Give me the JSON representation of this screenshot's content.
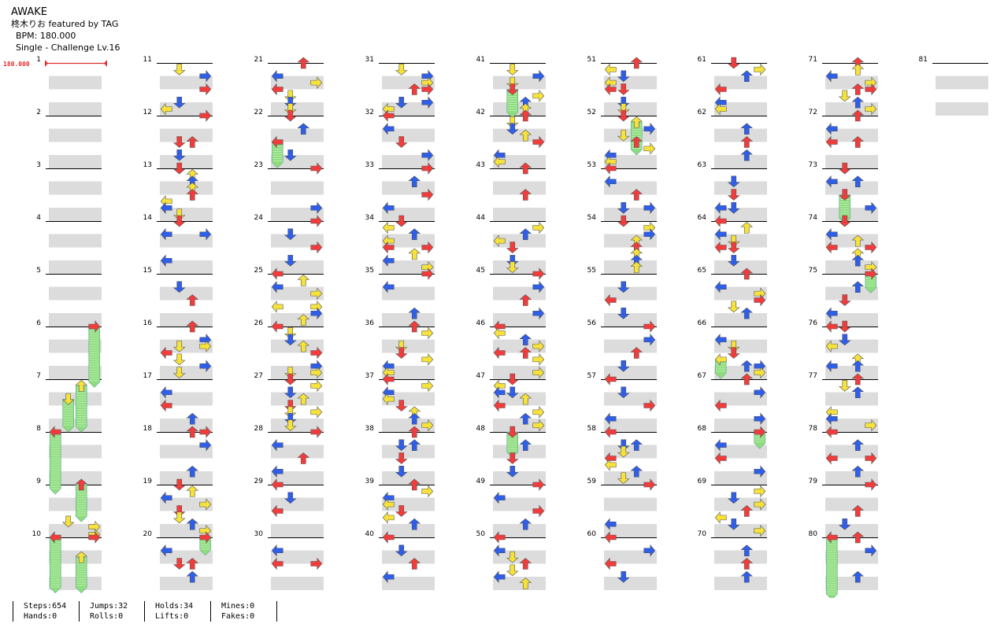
{
  "song": {
    "title": "AWAKE",
    "artist": "柊木りお featured by TAG",
    "bpm_text": "BPM: 180.000",
    "chart_text": "Single - Challenge  Lv.16"
  },
  "bpm_marker": {
    "label": "180.000",
    "color": "#e03030"
  },
  "colors": {
    "red": "#f23c3c",
    "blue": "#2f5ee8",
    "yellow": "#f6e23a",
    "hold": "#8fdc7e",
    "band": "#dcdcdc"
  },
  "measure_labels": [
    "1",
    "2",
    "3",
    "4",
    "5",
    "6",
    "7",
    "8",
    "9",
    "10",
    "11",
    "12",
    "13",
    "14",
    "15",
    "16",
    "17",
    "18",
    "19",
    "20",
    "21",
    "22",
    "23",
    "24",
    "25",
    "26",
    "27",
    "28",
    "29",
    "30",
    "31",
    "32",
    "33",
    "34",
    "35",
    "36",
    "37",
    "38",
    "39",
    "40",
    "41",
    "42",
    "43",
    "44",
    "45",
    "46",
    "47",
    "48",
    "49",
    "50",
    "51",
    "52",
    "53",
    "54",
    "55",
    "56",
    "57",
    "58",
    "59",
    "60",
    "61",
    "62",
    "63",
    "64",
    "65",
    "66",
    "67",
    "68",
    "69",
    "70",
    "71",
    "72",
    "73",
    "74",
    "75",
    "76",
    "77",
    "78",
    "79",
    "80",
    "81"
  ],
  "stats": {
    "steps": "Steps:654",
    "hands": "Hands:0",
    "jumps": "Jumps:32",
    "rolls": "Rolls:0",
    "holds": "Holds:34",
    "lifts": "Lifts:0",
    "mines": "Mines:0",
    "fakes": "Fakes:0"
  }
}
